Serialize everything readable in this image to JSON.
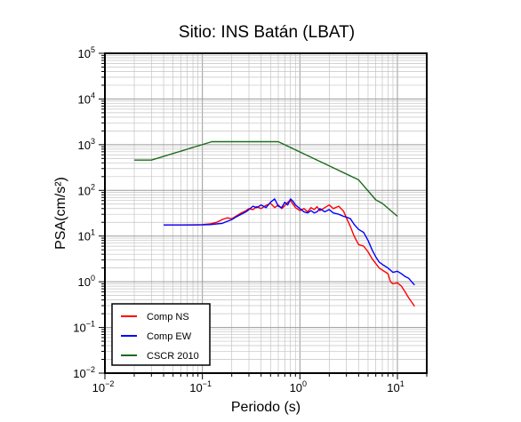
{
  "chart_data": {
    "type": "line",
    "title": "Sitio: INS Batán (LBAT)",
    "xlabel": "Periodo (s)",
    "ylabel": "PSA(cm/s²)",
    "xscale": "log",
    "yscale": "log",
    "xlim": [
      0.01,
      20
    ],
    "ylim": [
      0.01,
      100000
    ],
    "grid": true,
    "legend_position": "bottom-left",
    "x_ticks": [
      {
        "base": "10",
        "exp": "−2",
        "value": 0.01
      },
      {
        "base": "10",
        "exp": "−1",
        "value": 0.1
      },
      {
        "base": "10",
        "exp": "0",
        "value": 1
      },
      {
        "base": "10",
        "exp": "1",
        "value": 10
      }
    ],
    "y_ticks": [
      {
        "base": "10",
        "exp": "−2",
        "value": 0.01
      },
      {
        "base": "10",
        "exp": "−1",
        "value": 0.1
      },
      {
        "base": "10",
        "exp": "0",
        "value": 1
      },
      {
        "base": "10",
        "exp": "1",
        "value": 10
      },
      {
        "base": "10",
        "exp": "2",
        "value": 100
      },
      {
        "base": "10",
        "exp": "3",
        "value": 1000
      },
      {
        "base": "10",
        "exp": "4",
        "value": 10000
      },
      {
        "base": "10",
        "exp": "5",
        "value": 100000
      }
    ],
    "series": [
      {
        "name": "Comp NS",
        "color": "#ff0000",
        "points": [
          [
            0.04,
            17.5
          ],
          [
            0.06,
            17.5
          ],
          [
            0.08,
            17.6
          ],
          [
            0.1,
            17.8
          ],
          [
            0.12,
            18.5
          ],
          [
            0.14,
            20
          ],
          [
            0.16,
            23
          ],
          [
            0.18,
            25
          ],
          [
            0.2,
            24
          ],
          [
            0.22,
            27
          ],
          [
            0.25,
            32
          ],
          [
            0.28,
            36
          ],
          [
            0.3,
            40
          ],
          [
            0.33,
            38
          ],
          [
            0.36,
            44
          ],
          [
            0.4,
            40
          ],
          [
            0.45,
            47
          ],
          [
            0.5,
            52
          ],
          [
            0.55,
            42
          ],
          [
            0.6,
            48
          ],
          [
            0.65,
            40
          ],
          [
            0.7,
            46
          ],
          [
            0.75,
            55
          ],
          [
            0.8,
            60
          ],
          [
            0.85,
            50
          ],
          [
            0.9,
            42
          ],
          [
            1.0,
            36
          ],
          [
            1.1,
            40
          ],
          [
            1.2,
            34
          ],
          [
            1.3,
            42
          ],
          [
            1.4,
            38
          ],
          [
            1.5,
            44
          ],
          [
            1.6,
            36
          ],
          [
            1.8,
            42
          ],
          [
            2.0,
            48
          ],
          [
            2.2,
            40
          ],
          [
            2.5,
            45
          ],
          [
            2.8,
            35
          ],
          [
            3.0,
            25
          ],
          [
            3.3,
            16
          ],
          [
            3.6,
            10
          ],
          [
            4.0,
            6.5
          ],
          [
            4.5,
            6
          ],
          [
            5.0,
            4.5
          ],
          [
            5.5,
            3.2
          ],
          [
            6.0,
            2.5
          ],
          [
            6.5,
            2.0
          ],
          [
            7.0,
            1.8
          ],
          [
            8.0,
            1.5
          ],
          [
            8.5,
            1.0
          ],
          [
            9.0,
            0.9
          ],
          [
            10.0,
            0.95
          ],
          [
            11.0,
            0.8
          ],
          [
            12.0,
            0.6
          ],
          [
            13.0,
            0.45
          ],
          [
            14.0,
            0.36
          ],
          [
            15.0,
            0.29
          ]
        ]
      },
      {
        "name": "Comp EW",
        "color": "#0000ff",
        "points": [
          [
            0.04,
            17.5
          ],
          [
            0.06,
            17.5
          ],
          [
            0.08,
            17.5
          ],
          [
            0.1,
            17.6
          ],
          [
            0.12,
            17.8
          ],
          [
            0.14,
            18.5
          ],
          [
            0.16,
            19
          ],
          [
            0.18,
            21
          ],
          [
            0.2,
            23
          ],
          [
            0.22,
            26
          ],
          [
            0.25,
            30
          ],
          [
            0.28,
            34
          ],
          [
            0.3,
            38
          ],
          [
            0.33,
            45
          ],
          [
            0.36,
            42
          ],
          [
            0.4,
            48
          ],
          [
            0.45,
            42
          ],
          [
            0.5,
            55
          ],
          [
            0.55,
            65
          ],
          [
            0.6,
            45
          ],
          [
            0.65,
            42
          ],
          [
            0.7,
            55
          ],
          [
            0.75,
            48
          ],
          [
            0.8,
            65
          ],
          [
            0.85,
            58
          ],
          [
            0.9,
            48
          ],
          [
            1.0,
            40
          ],
          [
            1.1,
            34
          ],
          [
            1.2,
            32
          ],
          [
            1.3,
            36
          ],
          [
            1.4,
            32
          ],
          [
            1.5,
            34
          ],
          [
            1.6,
            40
          ],
          [
            1.8,
            34
          ],
          [
            2.0,
            38
          ],
          [
            2.2,
            32
          ],
          [
            2.5,
            30
          ],
          [
            2.8,
            27
          ],
          [
            3.0,
            26
          ],
          [
            3.3,
            24
          ],
          [
            3.6,
            18
          ],
          [
            4.0,
            14
          ],
          [
            4.5,
            12
          ],
          [
            5.0,
            8
          ],
          [
            5.5,
            5
          ],
          [
            6.0,
            3.5
          ],
          [
            6.5,
            2.7
          ],
          [
            7.0,
            2.4
          ],
          [
            8.0,
            2.0
          ],
          [
            9.0,
            1.6
          ],
          [
            10.0,
            1.7
          ],
          [
            11.0,
            1.5
          ],
          [
            12.0,
            1.3
          ],
          [
            13.0,
            1.2
          ],
          [
            14.0,
            1.0
          ],
          [
            15.0,
            0.85
          ]
        ]
      },
      {
        "name": "CSCR 2010",
        "color": "#1a6b1a",
        "points": [
          [
            0.02,
            460
          ],
          [
            0.03,
            460
          ],
          [
            0.125,
            1160
          ],
          [
            0.6,
            1160
          ],
          [
            4.0,
            170
          ],
          [
            6.0,
            62
          ],
          [
            7.0,
            52
          ],
          [
            10.0,
            27
          ]
        ]
      }
    ]
  }
}
